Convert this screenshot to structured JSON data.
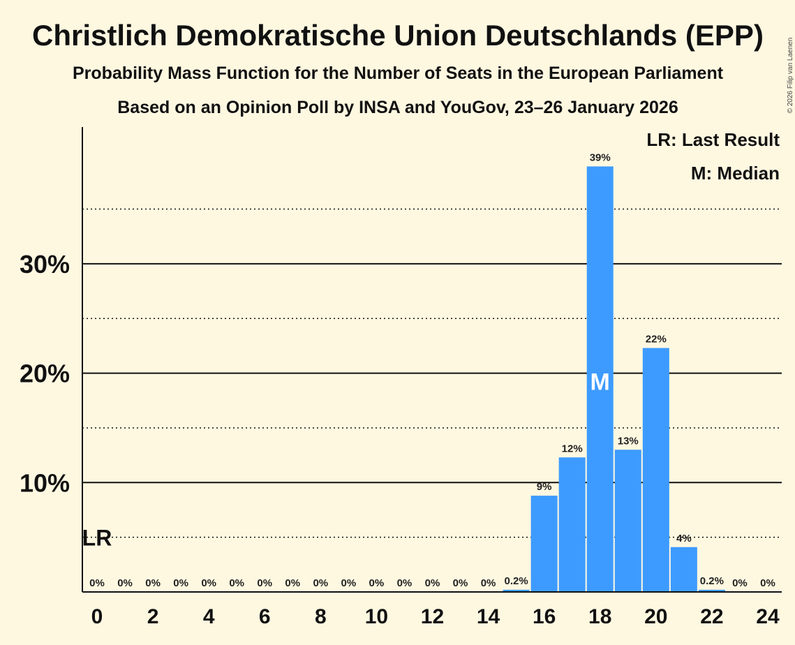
{
  "chart_data": {
    "type": "bar",
    "title": "Christlich Demokratische Union Deutschlands (EPP)",
    "subtitle": "Probability Mass Function for the Number of Seats in the European Parliament",
    "subtitle2": "Based on an Opinion Poll by INSA and YouGov, 23–26 January 2026",
    "copyright": "© 2026 Filip van Laenen",
    "categories": [
      0,
      1,
      2,
      3,
      4,
      5,
      6,
      7,
      8,
      9,
      10,
      11,
      12,
      13,
      14,
      15,
      16,
      17,
      18,
      19,
      20,
      21,
      22,
      23,
      24
    ],
    "values": [
      0,
      0,
      0,
      0,
      0,
      0,
      0,
      0,
      0,
      0,
      0,
      0,
      0,
      0,
      0,
      0.2,
      8.8,
      12.3,
      38.9,
      13.0,
      22.3,
      4.1,
      0.2,
      0,
      0
    ],
    "value_labels": [
      "0%",
      "0%",
      "0%",
      "0%",
      "0%",
      "0%",
      "0%",
      "0%",
      "0%",
      "0%",
      "0%",
      "0%",
      "0%",
      "0%",
      "0%",
      "0.2%",
      "9%",
      "12%",
      "39%",
      "13%",
      "22%",
      "4%",
      "0.2%",
      "0%",
      "0%"
    ],
    "x_tick_labels": [
      "0",
      "2",
      "4",
      "6",
      "8",
      "10",
      "12",
      "14",
      "16",
      "18",
      "20",
      "22",
      "24"
    ],
    "x_tick_values": [
      0,
      2,
      4,
      6,
      8,
      10,
      12,
      14,
      16,
      18,
      20,
      22,
      24
    ],
    "y_tick_labels": [
      "10%",
      "20%",
      "30%"
    ],
    "y_tick_values": [
      10,
      20,
      30
    ],
    "y_minor_values": [
      5,
      15,
      25,
      35
    ],
    "ylim": [
      0,
      42.5
    ],
    "last_result": {
      "seats": 0,
      "label": "LR",
      "value": 5
    },
    "median": {
      "seats": 18,
      "label": "M"
    },
    "legend": {
      "last_result": "LR: Last Result",
      "median": "M: Median",
      "placement": "top-right"
    },
    "xlabel": "",
    "ylabel": "",
    "colors": {
      "bar": "#3d9bff",
      "background": "#fff8e1",
      "text": "#111111"
    }
  }
}
